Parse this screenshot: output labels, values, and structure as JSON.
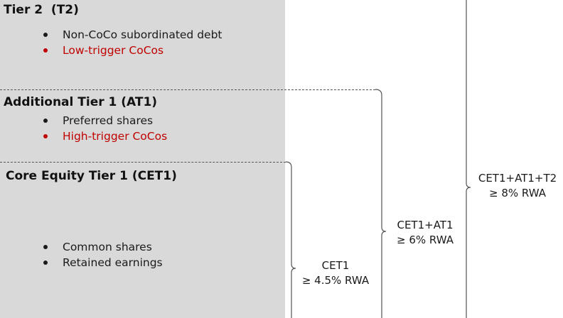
{
  "tiers": [
    {
      "heading": "Tier 2  (T2)",
      "items": [
        {
          "label": "Non-CoCo subordinated debt",
          "color": "#1a1a1a"
        },
        {
          "label": "Low-trigger CoCos",
          "color": "#c00000"
        }
      ]
    },
    {
      "heading": "Additional Tier 1 (AT1)",
      "items": [
        {
          "label": "Preferred shares",
          "color": "#1a1a1a"
        },
        {
          "label": "High-trigger CoCos",
          "color": "#c00000"
        }
      ]
    },
    {
      "heading": "Core Equity Tier 1 (CET1)",
      "items": [
        {
          "label": "Common shares",
          "color": "#1a1a1a"
        },
        {
          "label": "Retained earnings",
          "color": "#1a1a1a"
        }
      ]
    }
  ],
  "requirements": {
    "cet1": {
      "line1": "CET1",
      "line2": "≥ 4.5% RWA"
    },
    "cet1_at1": {
      "line1": "CET1+AT1",
      "line2": "≥ 6% RWA"
    },
    "total": {
      "line1": "CET1+AT1+T2",
      "line2": "≥ 8% RWA"
    }
  },
  "colors": {
    "panel": "#d9d9d9",
    "highlight": "#c00000",
    "text": "#1a1a1a",
    "bracket": "#555555"
  }
}
